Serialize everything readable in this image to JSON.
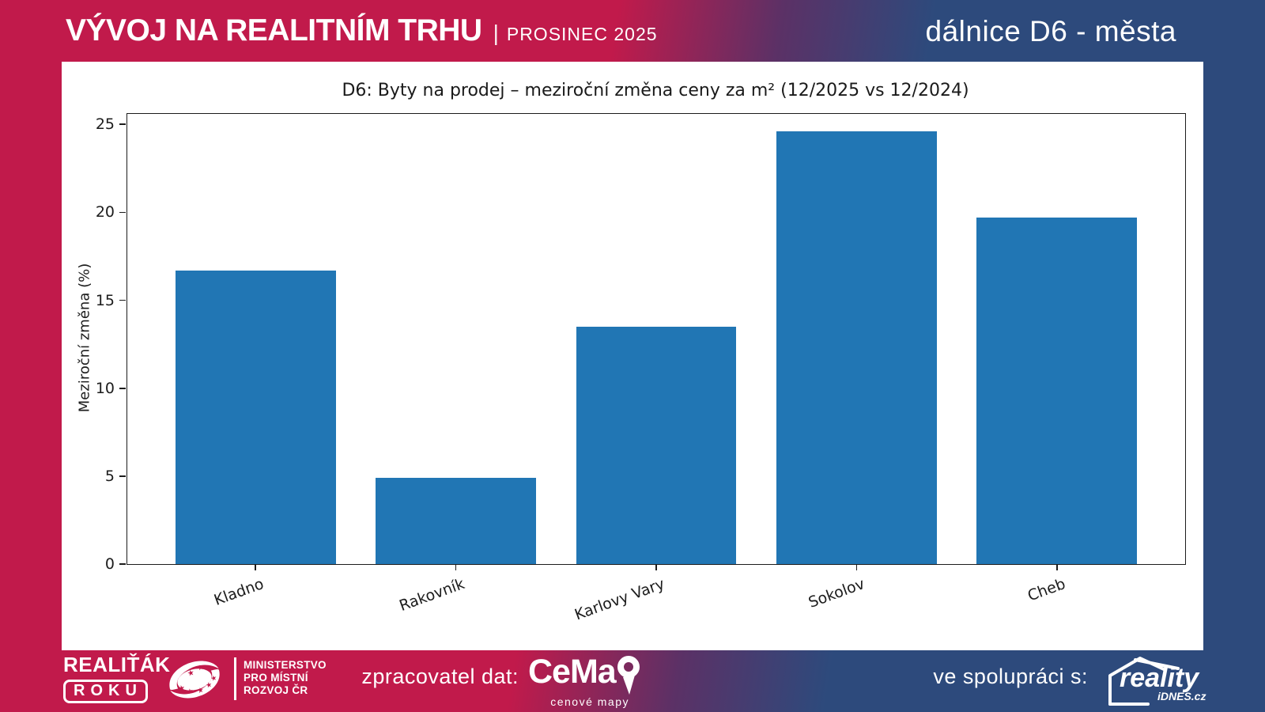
{
  "header": {
    "title": "VÝVOJ NA REALITNÍM TRHU",
    "separator": "|",
    "period": "PROSINEC 2025",
    "subtitle": "dálnice D6 - města"
  },
  "chart_data": {
    "type": "bar",
    "title": "D6: Byty na prodej – meziroční změna ceny za m² (12/2025 vs 12/2024)",
    "categories": [
      "Kladno",
      "Rakovník",
      "Karlovy Vary",
      "Sokolov",
      "Cheb"
    ],
    "values": [
      16.7,
      4.9,
      13.5,
      24.6,
      19.7
    ],
    "xlabel": "",
    "ylabel": "Meziroční změna (%)",
    "ylim": [
      0,
      25.6
    ],
    "yticks": [
      0,
      5,
      10,
      15,
      20,
      25
    ],
    "bar_color": "#2176b4",
    "grid": false,
    "legend": null
  },
  "footer": {
    "realitak": {
      "line1": "REALIŤÁK",
      "line2": "ROKU"
    },
    "ministry": {
      "lines": [
        "MINISTERSTVO",
        "PRO MÍSTNÍ",
        "ROZVOJ ČR"
      ]
    },
    "provider_label": "zpracovatel dat:",
    "cemap": {
      "brand": "CeMap",
      "wordmark_prefix": "CeMa",
      "tagline": "cenové mapy"
    },
    "partner_label": "ve spolupráci s:",
    "reality": {
      "brand": "reality",
      "sub": "iDNES.cz"
    }
  },
  "colors": {
    "crimson": "#c11a4b",
    "navy": "#2d4a7c",
    "panel": "#ffffff",
    "bar": "#2176b4"
  }
}
